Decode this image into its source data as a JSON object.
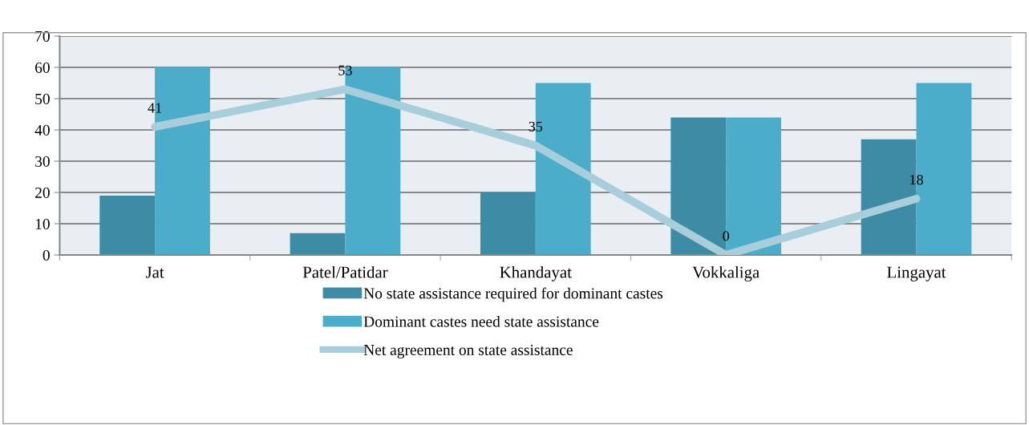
{
  "chart_data": {
    "type": "bar",
    "categories": [
      "Jat",
      "Patel/Patidar",
      "Khandayat",
      "Vokkaliga",
      "Lingayat"
    ],
    "series": [
      {
        "name": "No state assistance required for dominant castes",
        "color": "#3d8ba5",
        "values": [
          19,
          7,
          20,
          44,
          37
        ]
      },
      {
        "name": "Dominant castes need state assistance",
        "color": "#4badca",
        "values": [
          60,
          60,
          55,
          44,
          55
        ]
      },
      {
        "name": "Net agreement on state assistance",
        "type": "line",
        "color": "#a8cedc",
        "values": [
          41,
          53,
          35,
          0,
          18
        ],
        "value_labels": [
          "41",
          "53",
          "35",
          "0",
          "18"
        ]
      }
    ],
    "ylim": [
      0,
      70
    ],
    "yticks": [
      0,
      10,
      20,
      30,
      40,
      50,
      60,
      70
    ],
    "grid": "y",
    "legend": "bottom"
  }
}
